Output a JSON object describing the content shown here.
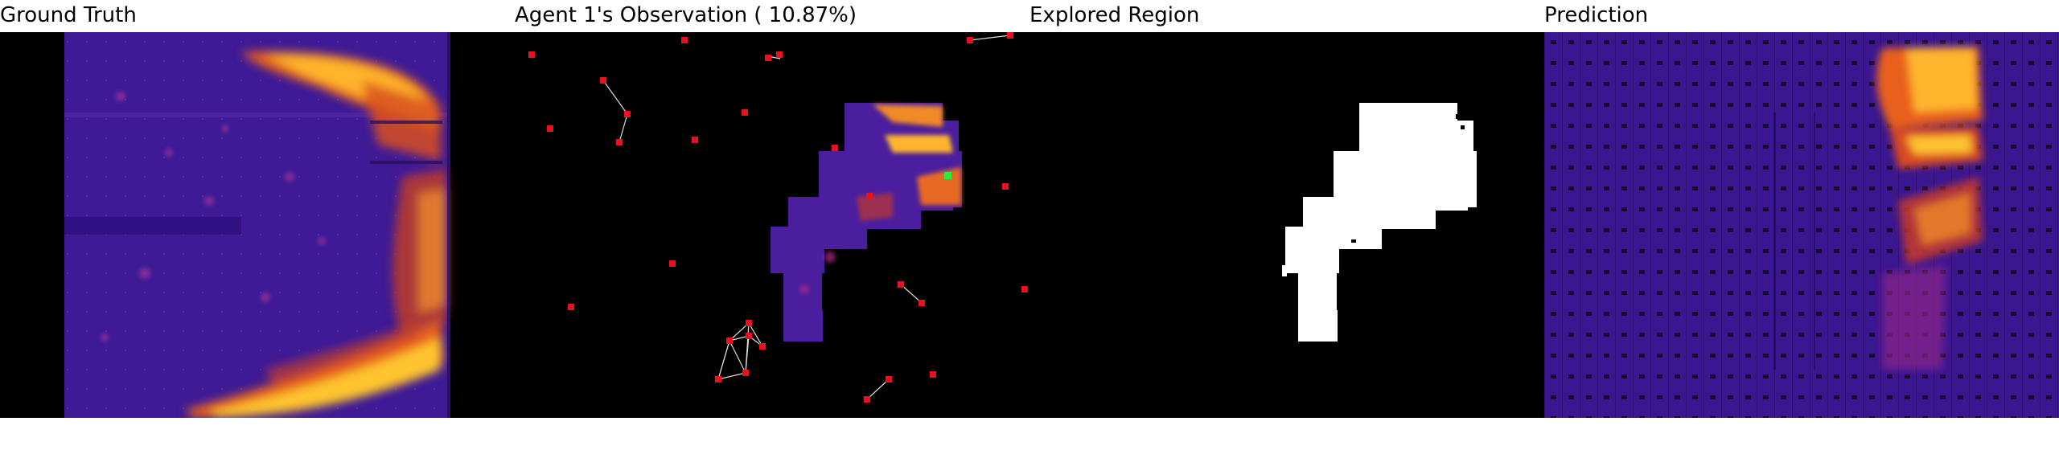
{
  "panels": {
    "ground_truth": {
      "title": "Ground Truth"
    },
    "observation": {
      "title": "Agent 1's Observation ( 10.87%)"
    },
    "explored": {
      "title": "Explored Region"
    },
    "prediction": {
      "title": "Prediction"
    }
  },
  "colors": {
    "background": "#000000",
    "heat_low": "#1e0a78",
    "heat_mid": "#5a1ea6",
    "heat_high": "#e0621e",
    "heat_peak": "#ffd23a",
    "agent_marker": "#e8121e",
    "active_agent_marker": "#2ee83a",
    "link_line": "#dcdcdc",
    "explored_region": "#ffffff"
  },
  "icons": {
    "agent": "red-square-agent-icon",
    "active_agent": "green-square-agent-icon"
  }
}
